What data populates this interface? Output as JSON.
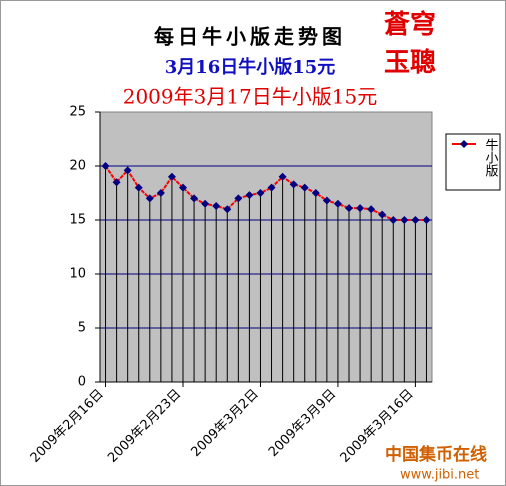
{
  "chart_data": {
    "type": "line",
    "title": "每日牛小版走势图",
    "subtitle": "3月16日牛小版15元",
    "subtitle2": "2009年3月17日牛小版15元",
    "annotations": [
      "蒼穹",
      "玉聰",
      "中国集币在线",
      "www.jibi.net"
    ],
    "categories": [
      "2009年2月16日",
      null,
      null,
      null,
      null,
      null,
      null,
      "2009年2月23日",
      null,
      null,
      null,
      null,
      null,
      null,
      "2009年3月2日",
      null,
      null,
      null,
      null,
      null,
      null,
      "2009年3月9日",
      null,
      null,
      null,
      null,
      null,
      null,
      "2009年3月16日",
      null
    ],
    "series": [
      {
        "name": "牛小版",
        "color": "#ff0000",
        "marker_color": "#000080",
        "values": [
          20,
          18.5,
          19.6,
          18,
          17,
          17.5,
          19,
          18,
          17,
          16.5,
          16.3,
          16,
          17,
          17.3,
          17.5,
          18,
          19,
          18.3,
          18,
          17.5,
          16.8,
          16.5,
          16.1,
          16.1,
          16,
          15.5,
          15,
          15,
          15,
          15
        ]
      }
    ],
    "ylim": [
      0,
      25
    ],
    "yticks": [
      0,
      5,
      10,
      15,
      20,
      25
    ],
    "grid": true,
    "drop_lines": true,
    "legend": "right"
  }
}
